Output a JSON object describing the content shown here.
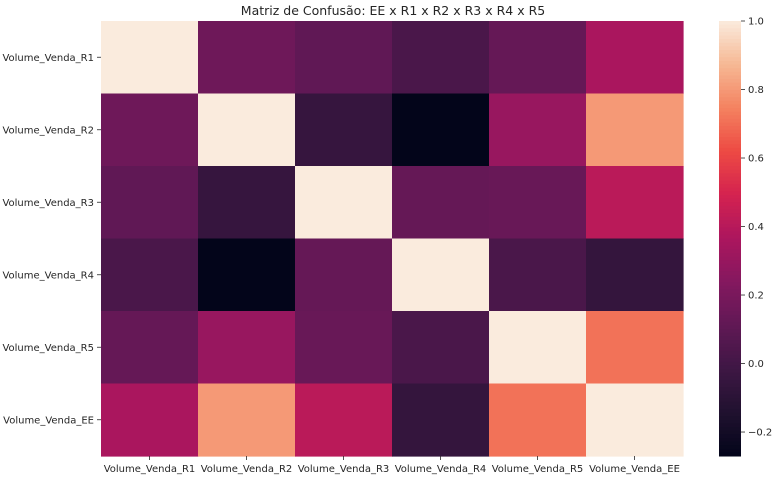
{
  "chart_data": {
    "type": "heatmap",
    "title": "Matriz de Confusão: EE x R1 x R2 x R3 x R4 x R5",
    "xlabel": "",
    "ylabel": "",
    "row_labels": [
      "Volume_Venda_R1",
      "Volume_Venda_R2",
      "Volume_Venda_R3",
      "Volume_Venda_R4",
      "Volume_Venda_R5",
      "Volume_Venda_EE"
    ],
    "col_labels": [
      "Volume_Venda_R1",
      "Volume_Venda_R2",
      "Volume_Venda_R3",
      "Volume_Venda_R4",
      "Volume_Venda_R5",
      "Volume_Venda_EE"
    ],
    "values": [
      [
        1.0,
        0.16,
        0.11,
        0.03,
        0.13,
        0.36
      ],
      [
        0.16,
        1.0,
        -0.05,
        -0.27,
        0.3,
        0.8
      ],
      [
        0.11,
        -0.05,
        1.0,
        0.13,
        0.14,
        0.41
      ],
      [
        0.03,
        -0.27,
        0.13,
        1.0,
        0.03,
        -0.06
      ],
      [
        0.13,
        0.3,
        0.14,
        0.03,
        1.0,
        0.71
      ],
      [
        0.36,
        0.8,
        0.41,
        -0.06,
        0.71,
        1.0
      ]
    ],
    "vmin": -0.27,
    "vmax": 1.0,
    "colorbar": {
      "ticks": [
        1.0,
        0.8,
        0.6,
        0.4,
        0.2,
        0.0,
        -0.2
      ],
      "tick_labels": [
        "1.0",
        "0.8",
        "0.6",
        "0.4",
        "0.2",
        "0.0",
        "−0.2"
      ]
    },
    "colormap": "rocket"
  }
}
